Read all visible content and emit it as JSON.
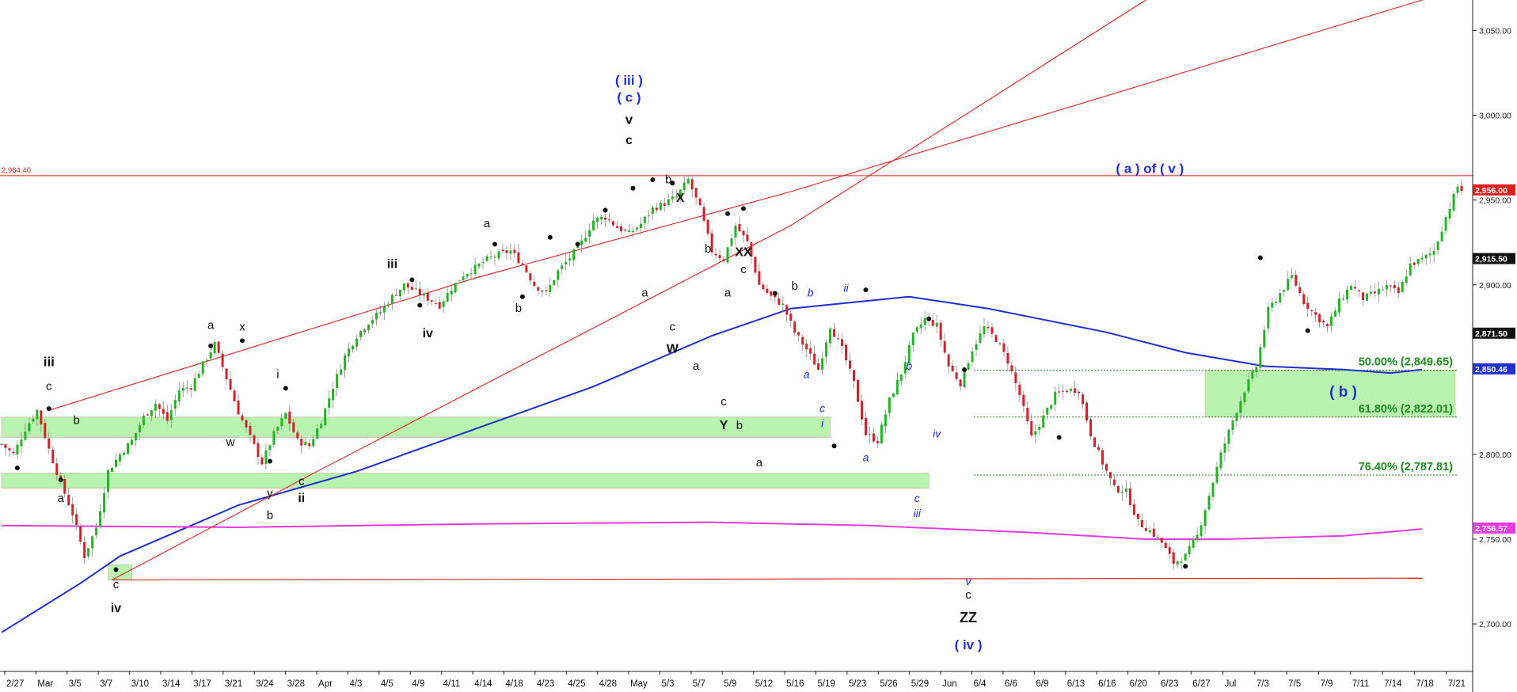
{
  "chart_data": {
    "type": "candlestick",
    "instrument_note": "",
    "y_axis": {
      "ticks": [
        2700,
        2750,
        2800,
        2850,
        2900,
        2950,
        3000,
        3050
      ],
      "tick_labels": [
        "2,700.00",
        "2,750.00",
        "2,800.00",
        "2,850.00",
        "2,900.00",
        "2,950.00",
        "3,000.00",
        "3,050.00"
      ],
      "range": [
        2672,
        3068
      ],
      "side": "right"
    },
    "x_axis": {
      "tick_labels": [
        "2/27",
        "Mar",
        "3/5",
        "3/7",
        "3/10",
        "3/14",
        "3/17",
        "3/21",
        "3/24",
        "3/28",
        "Apr",
        "4/3",
        "4/5",
        "4/9",
        "4/11",
        "4/14",
        "4/18",
        "4/23",
        "4/25",
        "4/28",
        "May",
        "5/3",
        "5/7",
        "5/9",
        "5/12",
        "5/16",
        "5/19",
        "5/23",
        "5/26",
        "5/29",
        "Jun",
        "6/4",
        "6/6",
        "6/9",
        "6/13",
        "6/16",
        "6/20",
        "6/23",
        "6/27",
        "Jul",
        "7/3",
        "7/5",
        "7/9",
        "7/11",
        "7/14",
        "7/18",
        "7/21"
      ]
    },
    "price_markers": [
      {
        "value": 2956.0,
        "label": "2,956.00",
        "bg": "#e0201e",
        "fg": "#ffffff"
      },
      {
        "value": 2915.5,
        "label": "2,915.50",
        "bg": "#111111",
        "fg": "#ffffff"
      },
      {
        "value": 2871.5,
        "label": "2,871.50",
        "bg": "#111111",
        "fg": "#ffffff"
      },
      {
        "value": 2850.46,
        "label": "2,850.46",
        "bg": "#1f2fd6",
        "fg": "#ffffff"
      },
      {
        "value": 2756.57,
        "label": "2,756.57",
        "bg": "#e83be0",
        "fg": "#ffffff"
      }
    ],
    "horizontal_line": {
      "value": 2964.4,
      "label": "2,964.40",
      "color": "#e0201e"
    },
    "fib_levels": [
      {
        "label": "50.00% (2,849.65)",
        "value": 2849.65
      },
      {
        "label": "61.80% (2,822.01)",
        "value": 2822.01
      },
      {
        "label": "76.40% (2,787.81)",
        "value": 2787.81
      }
    ],
    "zones": [
      {
        "name": "zone-upper",
        "y_range": [
          2810,
          2822
        ]
      },
      {
        "name": "zone-lower",
        "y_range": [
          2780,
          2789
        ]
      },
      {
        "name": "zone-b-target",
        "y_range": [
          2822,
          2849.65
        ]
      },
      {
        "name": "zone-low",
        "y_range": [
          2726,
          2735
        ]
      }
    ],
    "close_path": [
      [
        0,
        2806
      ],
      [
        3,
        2800
      ],
      [
        6,
        2815
      ],
      [
        9,
        2826
      ],
      [
        12,
        2803
      ],
      [
        15,
        2783
      ],
      [
        18,
        2765
      ],
      [
        21,
        2740
      ],
      [
        24,
        2757
      ],
      [
        27,
        2790
      ],
      [
        30,
        2800
      ],
      [
        33,
        2808
      ],
      [
        36,
        2822
      ],
      [
        39,
        2830
      ],
      [
        42,
        2820
      ],
      [
        45,
        2838
      ],
      [
        48,
        2840
      ],
      [
        51,
        2853
      ],
      [
        54,
        2865
      ],
      [
        57,
        2845
      ],
      [
        60,
        2825
      ],
      [
        63,
        2810
      ],
      [
        66,
        2795
      ],
      [
        69,
        2812
      ],
      [
        72,
        2824
      ],
      [
        75,
        2808
      ],
      [
        78,
        2805
      ],
      [
        81,
        2820
      ],
      [
        84,
        2840
      ],
      [
        87,
        2858
      ],
      [
        90,
        2870
      ],
      [
        93,
        2878
      ],
      [
        96,
        2884
      ],
      [
        99,
        2893
      ],
      [
        102,
        2900
      ],
      [
        105,
        2896
      ],
      [
        108,
        2892
      ],
      [
        111,
        2888
      ],
      [
        114,
        2898
      ],
      [
        117,
        2906
      ],
      [
        120,
        2910
      ],
      [
        123,
        2915
      ],
      [
        126,
        2918
      ],
      [
        129,
        2920
      ],
      [
        132,
        2912
      ],
      [
        135,
        2900
      ],
      [
        138,
        2895
      ],
      [
        141,
        2908
      ],
      [
        144,
        2916
      ],
      [
        147,
        2925
      ],
      [
        150,
        2938
      ],
      [
        153,
        2940
      ],
      [
        156,
        2934
      ],
      [
        159,
        2930
      ],
      [
        162,
        2936
      ],
      [
        165,
        2945
      ],
      [
        168,
        2948
      ],
      [
        171,
        2952
      ],
      [
        174,
        2962
      ],
      [
        177,
        2945
      ],
      [
        180,
        2920
      ],
      [
        183,
        2915
      ],
      [
        186,
        2935
      ],
      [
        189,
        2925
      ],
      [
        192,
        2900
      ],
      [
        195,
        2893
      ],
      [
        198,
        2888
      ],
      [
        201,
        2872
      ],
      [
        204,
        2862
      ],
      [
        207,
        2850
      ],
      [
        210,
        2876
      ],
      [
        213,
        2862
      ],
      [
        216,
        2842
      ],
      [
        219,
        2812
      ],
      [
        222,
        2808
      ],
      [
        225,
        2832
      ],
      [
        228,
        2848
      ],
      [
        231,
        2870
      ],
      [
        234,
        2880
      ],
      [
        237,
        2876
      ],
      [
        240,
        2852
      ],
      [
        243,
        2842
      ],
      [
        246,
        2862
      ],
      [
        249,
        2875
      ],
      [
        252,
        2868
      ],
      [
        255,
        2855
      ],
      [
        258,
        2835
      ],
      [
        261,
        2810
      ],
      [
        264,
        2822
      ],
      [
        267,
        2835
      ],
      [
        270,
        2838
      ],
      [
        273,
        2838
      ],
      [
        276,
        2812
      ],
      [
        279,
        2795
      ],
      [
        282,
        2780
      ],
      [
        285,
        2778
      ],
      [
        288,
        2760
      ],
      [
        291,
        2755
      ],
      [
        294,
        2748
      ],
      [
        297,
        2736
      ],
      [
        300,
        2740
      ],
      [
        303,
        2752
      ],
      [
        306,
        2776
      ],
      [
        309,
        2800
      ],
      [
        312,
        2820
      ],
      [
        315,
        2838
      ],
      [
        318,
        2852
      ],
      [
        321,
        2885
      ],
      [
        324,
        2895
      ],
      [
        327,
        2905
      ],
      [
        330,
        2890
      ],
      [
        333,
        2882
      ],
      [
        336,
        2875
      ],
      [
        339,
        2890
      ],
      [
        342,
        2900
      ],
      [
        345,
        2892
      ],
      [
        348,
        2895
      ],
      [
        351,
        2899
      ],
      [
        354,
        2895
      ],
      [
        357,
        2912
      ],
      [
        360,
        2915
      ],
      [
        363,
        2920
      ],
      [
        366,
        2940
      ],
      [
        369,
        2958
      ],
      [
        370,
        2956
      ]
    ],
    "session_count": 372,
    "moving_averages": [
      {
        "name": "",
        "color": "#1f2fd6",
        "points": [
          [
            0,
            2695
          ],
          [
            20,
            2724
          ],
          [
            30,
            2740
          ],
          [
            60,
            2770
          ],
          [
            90,
            2790
          ],
          [
            120,
            2815
          ],
          [
            150,
            2840
          ],
          [
            180,
            2870
          ],
          [
            200,
            2886
          ],
          [
            230,
            2893
          ],
          [
            250,
            2886
          ],
          [
            280,
            2872
          ],
          [
            300,
            2860
          ],
          [
            320,
            2852
          ],
          [
            340,
            2850
          ],
          [
            352,
            2848
          ],
          [
            360,
            2850
          ]
        ]
      },
      {
        "name": "",
        "color": "#e83be0",
        "points": [
          [
            0,
            2758
          ],
          [
            60,
            2757
          ],
          [
            120,
            2759
          ],
          [
            180,
            2760
          ],
          [
            220,
            2758
          ],
          [
            260,
            2754
          ],
          [
            290,
            2750
          ],
          [
            310,
            2750
          ],
          [
            340,
            2752
          ],
          [
            360,
            2756
          ]
        ]
      }
    ],
    "trendlines": [
      {
        "color": "#e0201e",
        "points": [
          [
            12,
            2826
          ],
          [
            120,
            2904
          ],
          [
            200,
            2955
          ],
          [
            360,
            3068
          ]
        ]
      },
      {
        "color": "#e0201e",
        "points": [
          [
            28,
            2726
          ],
          [
            80,
            2790
          ],
          [
            200,
            2935
          ],
          [
            290,
            3068
          ]
        ]
      },
      {
        "color": "#e0201e",
        "points": [
          [
            28,
            2726
          ],
          [
            360,
            2727
          ]
        ]
      }
    ],
    "pivot_points": [
      [
        4,
        2792
      ],
      [
        15,
        2785
      ],
      [
        12,
        2827
      ],
      [
        29,
        2732
      ],
      [
        53,
        2864
      ],
      [
        61,
        2867
      ],
      [
        68,
        2796
      ],
      [
        72,
        2839
      ],
      [
        106,
        2888
      ],
      [
        104,
        2903
      ],
      [
        125,
        2924
      ],
      [
        132,
        2893
      ],
      [
        139,
        2928
      ],
      [
        146,
        2924
      ],
      [
        153,
        2944
      ],
      [
        160,
        2957
      ],
      [
        165,
        2962
      ],
      [
        170,
        2960
      ],
      [
        184,
        2942
      ],
      [
        188,
        2945
      ],
      [
        196,
        2895
      ],
      [
        211,
        2805
      ],
      [
        219,
        2897
      ],
      [
        235,
        2880
      ],
      [
        244,
        2850
      ],
      [
        268,
        2810
      ],
      [
        300,
        2734
      ],
      [
        319,
        2916
      ],
      [
        331,
        2873
      ]
    ],
    "wave_labels": [
      {
        "text": "iii",
        "x": 12,
        "y": 2852,
        "color": "#111111",
        "size": 17
      },
      {
        "text": "c",
        "x": 12,
        "y": 2838,
        "color": "#111111",
        "size": 15
      },
      {
        "text": "b",
        "x": 19,
        "y": 2818,
        "color": "#111111",
        "size": 15
      },
      {
        "text": "a",
        "x": 15,
        "y": 2772,
        "color": "#111111",
        "size": 15
      },
      {
        "text": "c",
        "x": 29,
        "y": 2721,
        "color": "#111111",
        "size": 15
      },
      {
        "text": "iv",
        "x": 29,
        "y": 2707,
        "color": "#111111",
        "size": 16
      },
      {
        "text": "a",
        "x": 53,
        "y": 2874,
        "color": "#111111",
        "size": 15
      },
      {
        "text": "x",
        "x": 61,
        "y": 2873,
        "color": "#111111",
        "size": 15
      },
      {
        "text": "w",
        "x": 58,
        "y": 2805,
        "color": "#111111",
        "size": 15
      },
      {
        "text": "i",
        "x": 70,
        "y": 2845,
        "color": "#111111",
        "size": 15
      },
      {
        "text": "y",
        "x": 68,
        "y": 2775,
        "color": "#111111",
        "size": 15
      },
      {
        "text": "b",
        "x": 68,
        "y": 2762,
        "color": "#111111",
        "size": 15
      },
      {
        "text": "c",
        "x": 76,
        "y": 2782,
        "color": "#111111",
        "size": 15
      },
      {
        "text": "ii",
        "x": 76,
        "y": 2772,
        "color": "#111111",
        "size": 16
      },
      {
        "text": "iii",
        "x": 99,
        "y": 2910,
        "color": "#111111",
        "size": 16
      },
      {
        "text": "iv",
        "x": 108,
        "y": 2869,
        "color": "#111111",
        "size": 16
      },
      {
        "text": "a",
        "x": 123,
        "y": 2934,
        "color": "#111111",
        "size": 15
      },
      {
        "text": "b",
        "x": 131,
        "y": 2884,
        "color": "#111111",
        "size": 15
      },
      {
        "text": "( iii )",
        "x": 159,
        "y": 3018,
        "color": "#1f2fd6",
        "size": 17
      },
      {
        "text": "( c )",
        "x": 159,
        "y": 3008,
        "color": "#1f2fd6",
        "size": 17
      },
      {
        "text": "v",
        "x": 159,
        "y": 2995,
        "color": "#111111",
        "size": 17
      },
      {
        "text": "c",
        "x": 159,
        "y": 2983,
        "color": "#111111",
        "size": 16
      },
      {
        "text": "b",
        "x": 169,
        "y": 2960,
        "color": "#111111",
        "size": 15
      },
      {
        "text": "X",
        "x": 172,
        "y": 2949,
        "color": "#111111",
        "size": 16
      },
      {
        "text": "a",
        "x": 163,
        "y": 2893,
        "color": "#111111",
        "size": 15
      },
      {
        "text": "b",
        "x": 179,
        "y": 2919,
        "color": "#111111",
        "size": 15
      },
      {
        "text": "XX",
        "x": 188,
        "y": 2917,
        "color": "#111111",
        "size": 16
      },
      {
        "text": "c",
        "x": 188,
        "y": 2907,
        "color": "#111111",
        "size": 15
      },
      {
        "text": "a",
        "x": 184,
        "y": 2893,
        "color": "#111111",
        "size": 15
      },
      {
        "text": "c",
        "x": 170,
        "y": 2873,
        "color": "#111111",
        "size": 15
      },
      {
        "text": "W",
        "x": 170,
        "y": 2860,
        "color": "#111111",
        "size": 16
      },
      {
        "text": "a",
        "x": 176,
        "y": 2850,
        "color": "#111111",
        "size": 15
      },
      {
        "text": "c",
        "x": 183,
        "y": 2829,
        "color": "#111111",
        "size": 15
      },
      {
        "text": "Y",
        "x": 183,
        "y": 2815,
        "color": "#111111",
        "size": 16
      },
      {
        "text": "b",
        "x": 187,
        "y": 2815,
        "color": "#111111",
        "size": 15
      },
      {
        "text": "a",
        "x": 192,
        "y": 2793,
        "color": "#111111",
        "size": 15
      },
      {
        "text": "b",
        "x": 201,
        "y": 2897,
        "color": "#111111",
        "size": 15
      },
      {
        "text": "b",
        "x": 205,
        "y": 2893,
        "color": "#1f2fd6",
        "size": 14,
        "italic": true
      },
      {
        "text": "a",
        "x": 204,
        "y": 2845,
        "color": "#1f2fd6",
        "size": 14,
        "italic": true
      },
      {
        "text": "ii",
        "x": 214,
        "y": 2896,
        "color": "#1f2fd6",
        "size": 14,
        "italic": true
      },
      {
        "text": "c",
        "x": 208,
        "y": 2825,
        "color": "#1f2fd6",
        "size": 14,
        "italic": true
      },
      {
        "text": "i",
        "x": 208,
        "y": 2816,
        "color": "#1f2fd6",
        "size": 14,
        "italic": true
      },
      {
        "text": "a",
        "x": 219,
        "y": 2796,
        "color": "#1f2fd6",
        "size": 14,
        "italic": true
      },
      {
        "text": "b",
        "x": 230,
        "y": 2850,
        "color": "#1f2fd6",
        "size": 14,
        "italic": true
      },
      {
        "text": "iv",
        "x": 237,
        "y": 2810,
        "color": "#1f2fd6",
        "size": 14,
        "italic": true
      },
      {
        "text": "c",
        "x": 232,
        "y": 2772,
        "color": "#1f2fd6",
        "size": 14,
        "italic": true
      },
      {
        "text": "iii",
        "x": 232,
        "y": 2763,
        "color": "#1f2fd6",
        "size": 14,
        "italic": true
      },
      {
        "text": "v",
        "x": 245,
        "y": 2723,
        "color": "#1f2fd6",
        "size": 14,
        "italic": true
      },
      {
        "text": "c",
        "x": 245,
        "y": 2715,
        "color": "#111111",
        "size": 15
      },
      {
        "text": "ZZ",
        "x": 245,
        "y": 2701,
        "color": "#111111",
        "size": 18
      },
      {
        "text": "( iv )",
        "x": 245,
        "y": 2685,
        "color": "#1f2fd6",
        "size": 17
      },
      {
        "text": "( a ) of ( v )",
        "x": 291,
        "y": 2966,
        "color": "#1f2fd6",
        "size": 17
      },
      {
        "text": "( b )",
        "x": 340,
        "y": 2834,
        "color": "#1f2fd6",
        "size": 19
      }
    ]
  }
}
